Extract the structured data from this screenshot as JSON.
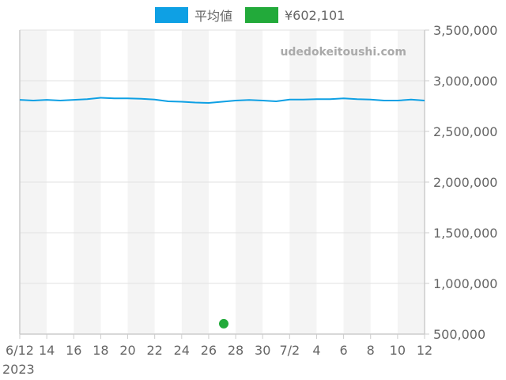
{
  "chart_data": {
    "type": "line",
    "title": "",
    "xlabel": "",
    "ylabel": "",
    "x_year_label": "2023",
    "x": [
      "6/12",
      "6/13",
      "6/14",
      "6/15",
      "6/16",
      "6/17",
      "6/18",
      "6/19",
      "6/20",
      "6/21",
      "6/22",
      "6/23",
      "6/24",
      "6/25",
      "6/26",
      "6/27",
      "6/28",
      "6/29",
      "6/30",
      "7/1",
      "7/2",
      "7/3",
      "7/4",
      "7/5",
      "7/6",
      "7/7",
      "7/8",
      "7/9",
      "7/10",
      "7/11",
      "7/12"
    ],
    "x_tick_labels": [
      "6/12",
      "14",
      "16",
      "18",
      "20",
      "22",
      "24",
      "26",
      "28",
      "30",
      "7/2",
      "4",
      "6",
      "8",
      "10",
      "12"
    ],
    "y_tick_labels": [
      "3,500,000",
      "3,000,000",
      "2,500,000",
      "2,000,000",
      "1,500,000",
      "1,000,000",
      "500,000"
    ],
    "y_ticks": [
      3500000,
      3000000,
      2500000,
      2000000,
      1500000,
      1000000,
      500000
    ],
    "ylim": [
      500000,
      3500000
    ],
    "y_axis_position": "right",
    "grid": true,
    "alternating_day_bands": true,
    "legend_position": "top",
    "series": [
      {
        "name": "平均値",
        "color": "#0ea0e4",
        "type": "line",
        "values": [
          2812000,
          2805000,
          2812000,
          2805000,
          2812000,
          2818000,
          2832000,
          2826000,
          2826000,
          2822000,
          2814000,
          2797000,
          2793000,
          2785000,
          2781000,
          2793000,
          2805000,
          2810000,
          2805000,
          2797000,
          2814000,
          2814000,
          2818000,
          2818000,
          2826000,
          2818000,
          2814000,
          2805000,
          2805000,
          2814000,
          2805000
        ]
      },
      {
        "name": "¥602,101",
        "color": "#22aa3a",
        "type": "scatter",
        "points": [
          {
            "x": "6/27",
            "y": 602101
          }
        ]
      }
    ],
    "watermark": "udedokeitoushi.com"
  },
  "legend": {
    "items": [
      {
        "label": "平均値",
        "color": "#0ea0e4"
      },
      {
        "label": "¥602,101",
        "color": "#22aa3a"
      }
    ]
  },
  "colors": {
    "band": "#f4f4f4",
    "grid": "#e2e2e2",
    "axis": "#cccccc",
    "text": "#666666",
    "watermark": "#aaaaaa"
  }
}
